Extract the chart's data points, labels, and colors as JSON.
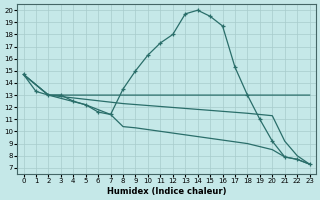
{
  "xlabel": "Humidex (Indice chaleur)",
  "background_color": "#c5e8e8",
  "grid_color": "#a8cccc",
  "line_color": "#2a6e6a",
  "xlim": [
    -0.5,
    23.5
  ],
  "ylim": [
    6.5,
    20.5
  ],
  "xticks": [
    0,
    1,
    2,
    3,
    4,
    5,
    6,
    7,
    8,
    9,
    10,
    11,
    12,
    13,
    14,
    15,
    16,
    17,
    18,
    19,
    20,
    21,
    22,
    23
  ],
  "yticks": [
    7,
    8,
    9,
    10,
    11,
    12,
    13,
    14,
    15,
    16,
    17,
    18,
    19,
    20
  ],
  "line1_x": [
    0,
    1,
    2,
    3,
    4,
    5,
    6,
    7,
    8,
    9,
    10,
    11,
    12,
    13,
    14,
    15,
    16,
    17,
    18,
    19,
    20,
    21,
    22,
    23
  ],
  "line1_y": [
    14.7,
    13.3,
    13.0,
    13.0,
    12.5,
    12.2,
    11.6,
    11.4,
    13.5,
    15.0,
    16.3,
    17.3,
    18.0,
    19.7,
    20.0,
    19.5,
    18.7,
    15.3,
    13.0,
    11.0,
    9.2,
    7.9,
    7.7,
    7.3
  ],
  "line2_x": [
    0,
    2,
    8,
    18,
    23
  ],
  "line2_y": [
    14.7,
    13.0,
    13.0,
    13.0,
    13.0
  ],
  "line3_x": [
    0,
    2,
    8,
    18,
    20,
    21,
    22,
    23
  ],
  "line3_y": [
    14.7,
    13.0,
    12.3,
    11.5,
    11.3,
    9.2,
    8.0,
    7.3
  ],
  "line4_x": [
    0,
    2,
    5,
    7,
    8,
    9,
    18,
    20,
    21,
    22,
    23
  ],
  "line4_y": [
    14.7,
    13.0,
    12.2,
    11.4,
    10.4,
    10.3,
    9.0,
    8.5,
    7.9,
    7.7,
    7.3
  ]
}
